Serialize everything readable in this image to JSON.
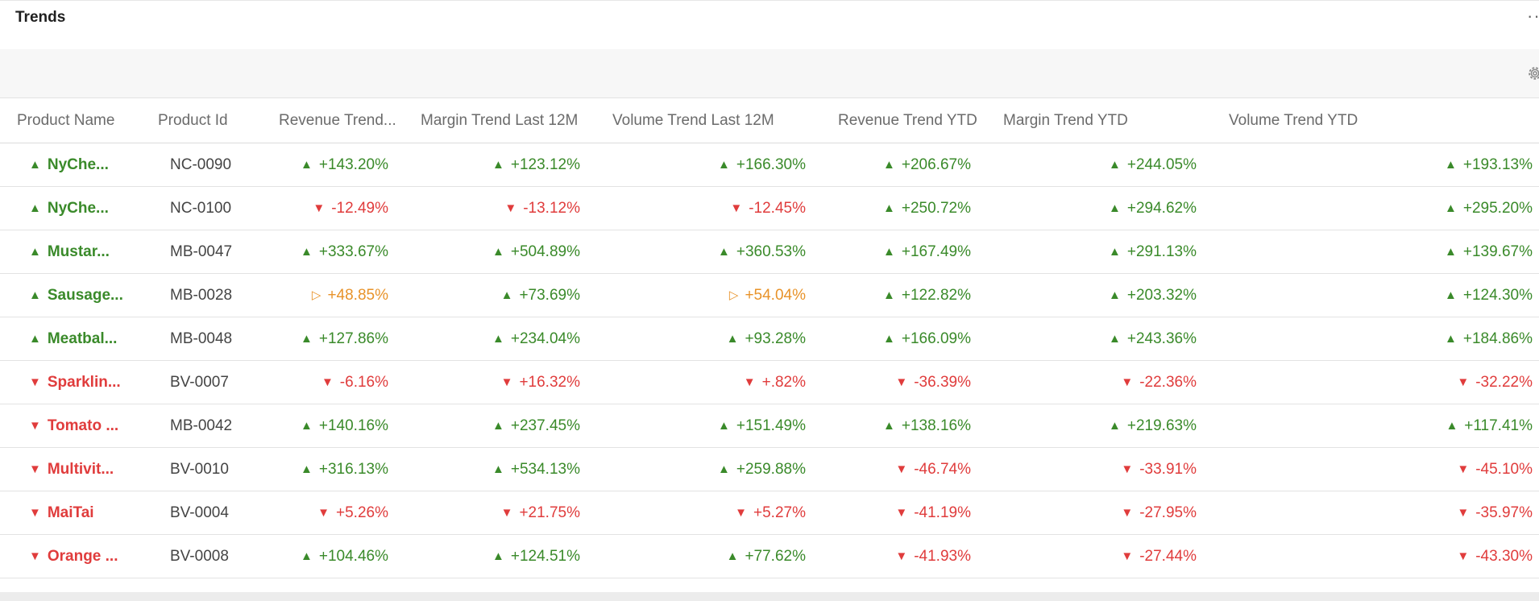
{
  "panel": {
    "title": "Trends",
    "more_label": "···",
    "settings_icon": "gear-icon"
  },
  "colors": {
    "up": "#3a8a2a",
    "down": "#e03c3c",
    "flat": "#e8932a"
  },
  "table": {
    "columns": [
      "Product Name",
      "Product Id",
      "Revenue Trend...",
      "Margin Trend Last 12M",
      "Volume Trend Last 12M",
      "Revenue Trend YTD",
      "Margin Trend YTD",
      "Volume Trend YTD"
    ],
    "rows": [
      {
        "name": "NyChe...",
        "name_trend": "up",
        "id": "NC-0090",
        "vals": [
          [
            "up",
            "+143.20%"
          ],
          [
            "up",
            "+123.12%"
          ],
          [
            "up",
            "+166.30%"
          ],
          [
            "up",
            "+206.67%"
          ],
          [
            "up",
            "+244.05%"
          ],
          [
            "up",
            "+193.13%"
          ]
        ]
      },
      {
        "name": "NyChe...",
        "name_trend": "up",
        "id": "NC-0100",
        "vals": [
          [
            "down",
            "-12.49%"
          ],
          [
            "down",
            "-13.12%"
          ],
          [
            "down",
            "-12.45%"
          ],
          [
            "up",
            "+250.72%"
          ],
          [
            "up",
            "+294.62%"
          ],
          [
            "up",
            "+295.20%"
          ]
        ]
      },
      {
        "name": "Mustar...",
        "name_trend": "up",
        "id": "MB-0047",
        "vals": [
          [
            "up",
            "+333.67%"
          ],
          [
            "up",
            "+504.89%"
          ],
          [
            "up",
            "+360.53%"
          ],
          [
            "up",
            "+167.49%"
          ],
          [
            "up",
            "+291.13%"
          ],
          [
            "up",
            "+139.67%"
          ]
        ]
      },
      {
        "name": "Sausage...",
        "name_trend": "up",
        "id": "MB-0028",
        "vals": [
          [
            "flat",
            "+48.85%"
          ],
          [
            "up",
            "+73.69%"
          ],
          [
            "flat",
            "+54.04%"
          ],
          [
            "up",
            "+122.82%"
          ],
          [
            "up",
            "+203.32%"
          ],
          [
            "up",
            "+124.30%"
          ]
        ]
      },
      {
        "name": "Meatbal...",
        "name_trend": "up",
        "id": "MB-0048",
        "vals": [
          [
            "up",
            "+127.86%"
          ],
          [
            "up",
            "+234.04%"
          ],
          [
            "up",
            "+93.28%"
          ],
          [
            "up",
            "+166.09%"
          ],
          [
            "up",
            "+243.36%"
          ],
          [
            "up",
            "+184.86%"
          ]
        ]
      },
      {
        "name": "Sparklin...",
        "name_trend": "down",
        "id": "BV-0007",
        "vals": [
          [
            "down",
            "-6.16%"
          ],
          [
            "down",
            "+16.32%"
          ],
          [
            "down",
            "+.82%"
          ],
          [
            "down",
            "-36.39%"
          ],
          [
            "down",
            "-22.36%"
          ],
          [
            "down",
            "-32.22%"
          ]
        ]
      },
      {
        "name": "Tomato ...",
        "name_trend": "down",
        "id": "MB-0042",
        "vals": [
          [
            "up",
            "+140.16%"
          ],
          [
            "up",
            "+237.45%"
          ],
          [
            "up",
            "+151.49%"
          ],
          [
            "up",
            "+138.16%"
          ],
          [
            "up",
            "+219.63%"
          ],
          [
            "up",
            "+117.41%"
          ]
        ]
      },
      {
        "name": "Multivit...",
        "name_trend": "down",
        "id": "BV-0010",
        "vals": [
          [
            "up",
            "+316.13%"
          ],
          [
            "up",
            "+534.13%"
          ],
          [
            "up",
            "+259.88%"
          ],
          [
            "down",
            "-46.74%"
          ],
          [
            "down",
            "-33.91%"
          ],
          [
            "down",
            "-45.10%"
          ]
        ]
      },
      {
        "name": "MaiTai",
        "name_trend": "down",
        "id": "BV-0004",
        "vals": [
          [
            "down",
            "+5.26%"
          ],
          [
            "down",
            "+21.75%"
          ],
          [
            "down",
            "+5.27%"
          ],
          [
            "down",
            "-41.19%"
          ],
          [
            "down",
            "-27.95%"
          ],
          [
            "down",
            "-35.97%"
          ]
        ]
      },
      {
        "name": "Orange ...",
        "name_trend": "down",
        "id": "BV-0008",
        "vals": [
          [
            "up",
            "+104.46%"
          ],
          [
            "up",
            "+124.51%"
          ],
          [
            "up",
            "+77.62%"
          ],
          [
            "down",
            "-41.93%"
          ],
          [
            "down",
            "-27.44%"
          ],
          [
            "down",
            "-43.30%"
          ]
        ]
      }
    ]
  }
}
